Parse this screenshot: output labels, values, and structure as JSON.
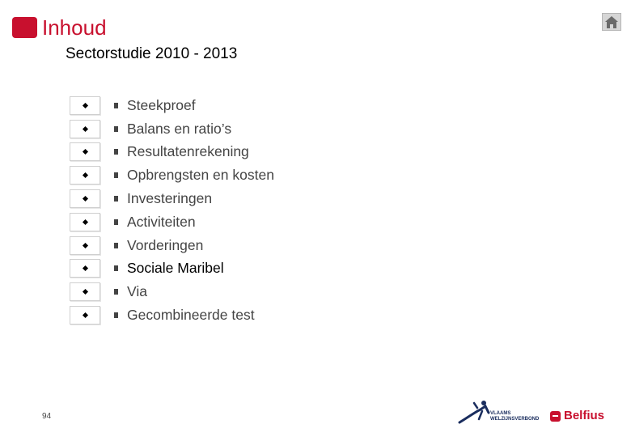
{
  "header": {
    "title": "Inhoud",
    "subtitle": "Sectorstudie 2010 - 2013"
  },
  "toc": {
    "items": [
      {
        "label": "Steekproef"
      },
      {
        "label": "Balans en ratio’s"
      },
      {
        "label": "Resultatenrekening"
      },
      {
        "label": "Opbrengsten en kosten"
      },
      {
        "label": "Investeringen"
      },
      {
        "label": "Activiteiten"
      },
      {
        "label": "Vorderingen"
      },
      {
        "label": "Sociale Maribel"
      },
      {
        "label": "Via"
      },
      {
        "label": "Gecombineerde test"
      }
    ],
    "active_item": "Sociale Maribel"
  },
  "footer": {
    "page_number": "94",
    "logo_vwv_line1": "VLAAMS",
    "logo_vwv_line2": "WELZIJNSVERBOND",
    "logo_belfius": "Belfius"
  },
  "colors": {
    "brand_red": "#c8102e",
    "text_gray": "#444444"
  },
  "icons": [
    "home-icon",
    "nav-diamond-icon",
    "square-bullet-icon",
    "stick-figure-icon"
  ]
}
